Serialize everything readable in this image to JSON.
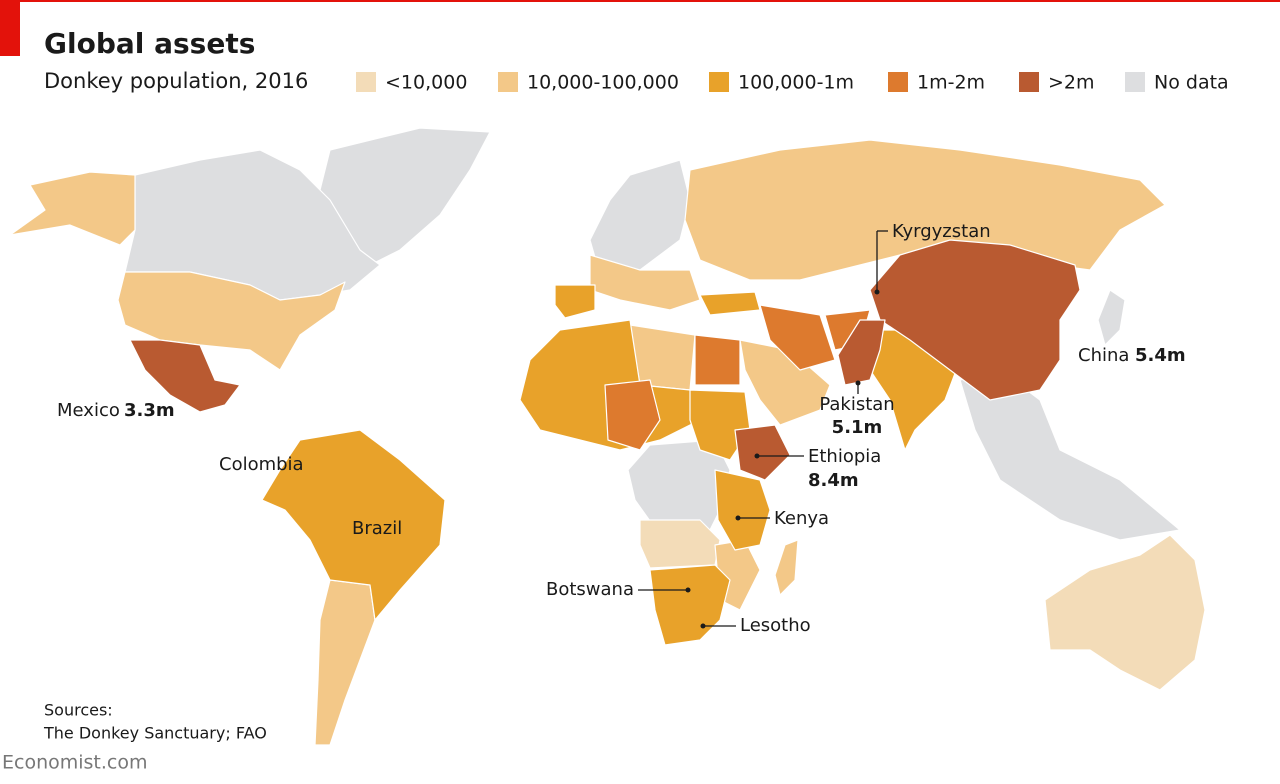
{
  "header": {
    "title": "Global assets",
    "subtitle": "Donkey population, 2016"
  },
  "legend": {
    "items": [
      {
        "label": "<10,000",
        "color": "#f3dcb8"
      },
      {
        "label": "10,000-100,000",
        "color": "#f3c888"
      },
      {
        "label": "100,000-1m",
        "color": "#e8a22a"
      },
      {
        "label": "1m-2m",
        "color": "#dd7a2e"
      },
      {
        "label": ">2m",
        "color": "#b95a31"
      },
      {
        "label": "No data",
        "color": "#dddee0"
      }
    ]
  },
  "annotations": [
    {
      "name": "Kyrgyzstan"
    },
    {
      "name": "China",
      "value": "5.4m"
    },
    {
      "name": "Pakistan",
      "value": "5.1m"
    },
    {
      "name": "Mexico",
      "value": "3.3m"
    },
    {
      "name": "Ethiopia",
      "value": "8.4m"
    },
    {
      "name": "Colombia"
    },
    {
      "name": "Brazil"
    },
    {
      "name": "Kenya"
    },
    {
      "name": "Botswana"
    },
    {
      "name": "Lesotho"
    }
  ],
  "source": {
    "heading": "Sources:",
    "text": "The Donkey Sanctuary; FAO"
  },
  "footer": {
    "brand": "Economist.com"
  }
}
